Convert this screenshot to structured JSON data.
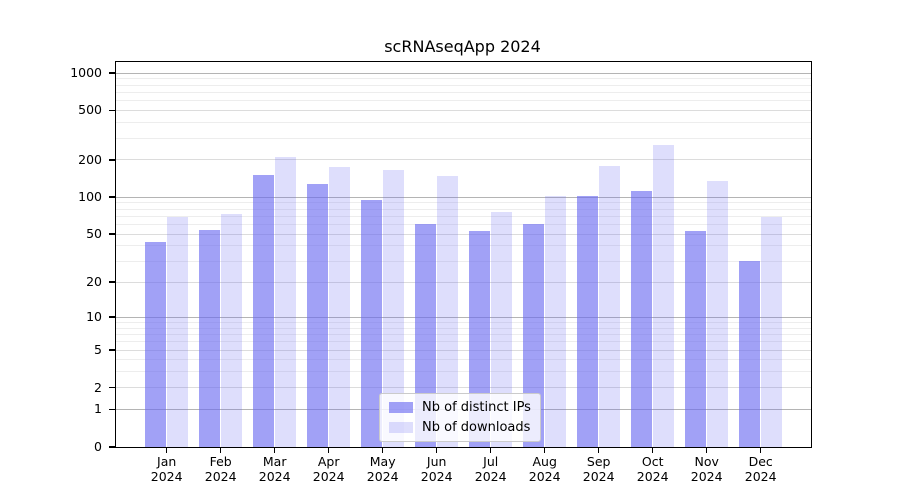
{
  "title": "scRNAseqApp 2024",
  "year_label": "2024",
  "colors": {
    "bar_dark": "rgba(106,106,241,0.63)",
    "bar_light": "rgba(106,106,241,0.22)",
    "grid_major": "#b4b4b4",
    "grid_mid": "#dcdcdc",
    "grid_minor": "#ededed"
  },
  "legend": {
    "items": [
      {
        "label": "Nb of distinct IPs",
        "series": 0
      },
      {
        "label": "Nb of downloads",
        "series": 1
      }
    ]
  },
  "chart_data": {
    "type": "bar",
    "title": "scRNAseqApp 2024",
    "categories": [
      "Jan",
      "Feb",
      "Mar",
      "Apr",
      "May",
      "Jun",
      "Jul",
      "Aug",
      "Sep",
      "Oct",
      "Nov",
      "Dec"
    ],
    "category_year": "2024",
    "series": [
      {
        "name": "Nb of distinct IPs",
        "color": "rgba(106,106,241,0.63)",
        "values": [
          43,
          54,
          150,
          128,
          94,
          60,
          53,
          60,
          102,
          112,
          53,
          30
        ]
      },
      {
        "name": "Nb of downloads",
        "color": "rgba(106,106,241,0.22)",
        "values": [
          69,
          73,
          213,
          175,
          167,
          148,
          76,
          103,
          178,
          262,
          134,
          69
        ]
      }
    ],
    "xlabel": "",
    "ylabel": "",
    "yscale": "log1p",
    "ylim": [
      0,
      1000
    ],
    "yticks": [
      0,
      1,
      2,
      5,
      10,
      20,
      50,
      100,
      200,
      500,
      1000
    ],
    "major_gridlines": [
      1,
      10,
      100,
      1000
    ],
    "grid": true,
    "legend_position": "lower center"
  }
}
